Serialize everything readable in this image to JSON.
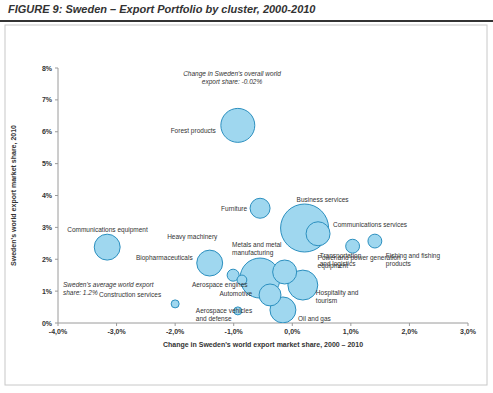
{
  "chart_data": {
    "type": "bubble",
    "title": "FIGURE 9: Sweden – Export Portfolio by cluster, 2000-2010",
    "x_label": "Change in Sweden's world export market share, 2000 – 2010",
    "y_label": "Sweden's world export market share, 2010",
    "annotations": [
      "Change in Sweden's overall world export share: -0.02%",
      "Sweden's average world export share: 1.2%"
    ],
    "labels": [
      "Forest products",
      "Furniture",
      "Business services",
      "Communications services",
      "Fishing and fishing products",
      "Power and power generation equipment",
      "Communications equipment",
      "Biopharmaceuticals",
      "Heavy machinery",
      "Metals and metal manufacturing",
      "Transportation and logistics",
      "Hospitality and tourism",
      "Aerospace engines",
      "Automotive",
      "Aerospace vehicles and defense",
      "Construction services",
      "Oil and gas"
    ],
    "x": [
      -0.93,
      -0.55,
      0.21,
      0.44,
      1.41,
      1.03,
      -3.16,
      -1.41,
      -1.01,
      -0.55,
      -0.13,
      0.18,
      -0.86,
      -0.38,
      -0.93,
      -2.0,
      -0.16
    ],
    "values": [
      6.2,
      3.6,
      2.98,
      2.8,
      2.57,
      2.41,
      2.38,
      1.88,
      1.5,
      1.41,
      1.6,
      1.19,
      1.35,
      0.88,
      0.38,
      0.6,
      0.41
    ],
    "sizes": [
      72,
      25,
      144,
      36,
      12,
      12,
      42,
      42,
      9,
      100,
      36,
      56,
      6,
      30,
      4,
      4,
      42
    ],
    "color": "#9fd7ef",
    "xlim": [
      -4,
      3
    ],
    "ylim": [
      0,
      8
    ],
    "xticks": [
      {
        "value": -4,
        "label": "-4,0%"
      },
      {
        "value": -3,
        "label": "-3,0%"
      },
      {
        "value": -2,
        "label": "-2,0%"
      },
      {
        "value": -1,
        "label": "-1,0%"
      },
      {
        "value": 0,
        "label": "0,0%"
      },
      {
        "value": 1,
        "label": "1,0%"
      },
      {
        "value": 2,
        "label": "2,0%"
      },
      {
        "value": 3,
        "label": "3,0%"
      }
    ],
    "yticks": [
      {
        "value": 0,
        "label": "0%"
      },
      {
        "value": 1,
        "label": "1%"
      },
      {
        "value": 2,
        "label": "2%"
      },
      {
        "value": 3,
        "label": "3%"
      },
      {
        "value": 4,
        "label": "4%"
      },
      {
        "value": 5,
        "label": "5%"
      },
      {
        "value": 6,
        "label": "6%"
      },
      {
        "value": 7,
        "label": "7%"
      },
      {
        "value": 8,
        "label": "8%"
      }
    ],
    "grid": false
  }
}
